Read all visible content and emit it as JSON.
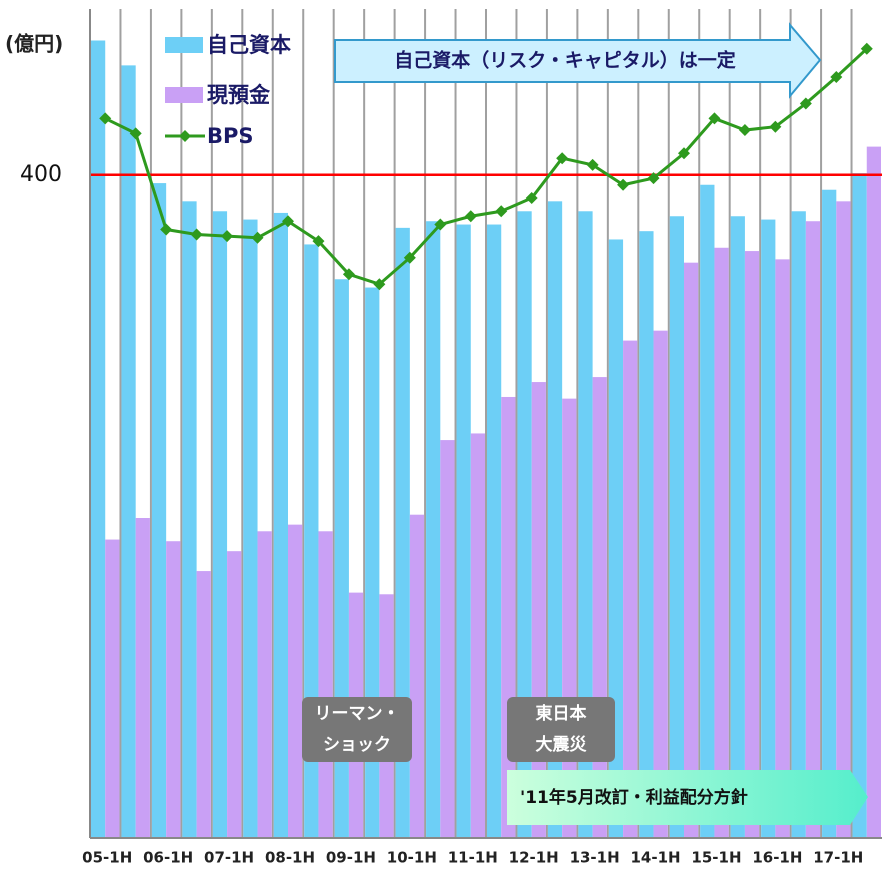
{
  "chart_data": {
    "type": "bar_line",
    "y_unit": "(億円)",
    "categories": [
      "05-1H",
      null,
      "06-1H",
      null,
      "07-1H",
      null,
      "08-1H",
      null,
      "09-1H",
      null,
      "10-1H",
      null,
      "11-1H",
      null,
      "12-1H",
      null,
      "13-1H",
      null,
      "14-1H",
      null,
      "15-1H",
      null,
      "16-1H",
      null,
      "17-1H",
      null
    ],
    "series": [
      {
        "name": "自己資本",
        "type": "bar",
        "color": "#6dcff6",
        "values": [
          481,
          466,
          395,
          384,
          378,
          373,
          377,
          358,
          337,
          332,
          368,
          372,
          370,
          370,
          378,
          384,
          378,
          361,
          366,
          375,
          394,
          375,
          373,
          378,
          391,
          401
        ]
      },
      {
        "name": "現預金",
        "type": "bar",
        "color": "#c9a0f5",
        "values": [
          180,
          193,
          179,
          161,
          173,
          185,
          189,
          185,
          148,
          147,
          195,
          240,
          244,
          266,
          275,
          265,
          278,
          300,
          306,
          347,
          356,
          354,
          349,
          372,
          384,
          417
        ]
      },
      {
        "name": "BPS",
        "type": "line",
        "color": "#2e9a1e",
        "values": [
          434,
          425,
          367,
          364,
          363,
          362,
          372,
          360,
          340,
          334,
          350,
          370,
          375,
          378,
          386,
          410,
          406,
          394,
          398,
          413,
          434,
          427,
          429,
          443,
          459,
          476
        ]
      }
    ],
    "ylim": [
      0,
      500
    ],
    "yticks": [
      400
    ],
    "grid_color": "#ff0000",
    "annotations": [
      {
        "lines": [
          "自己資本（リスク・キャピタル）は一定"
        ]
      },
      {
        "lines": [
          "リーマン・",
          "ショック"
        ]
      },
      {
        "lines": [
          "東日本",
          "大震災"
        ]
      },
      {
        "lines": [
          "'11年5月改訂・利益配分方針"
        ]
      }
    ]
  }
}
